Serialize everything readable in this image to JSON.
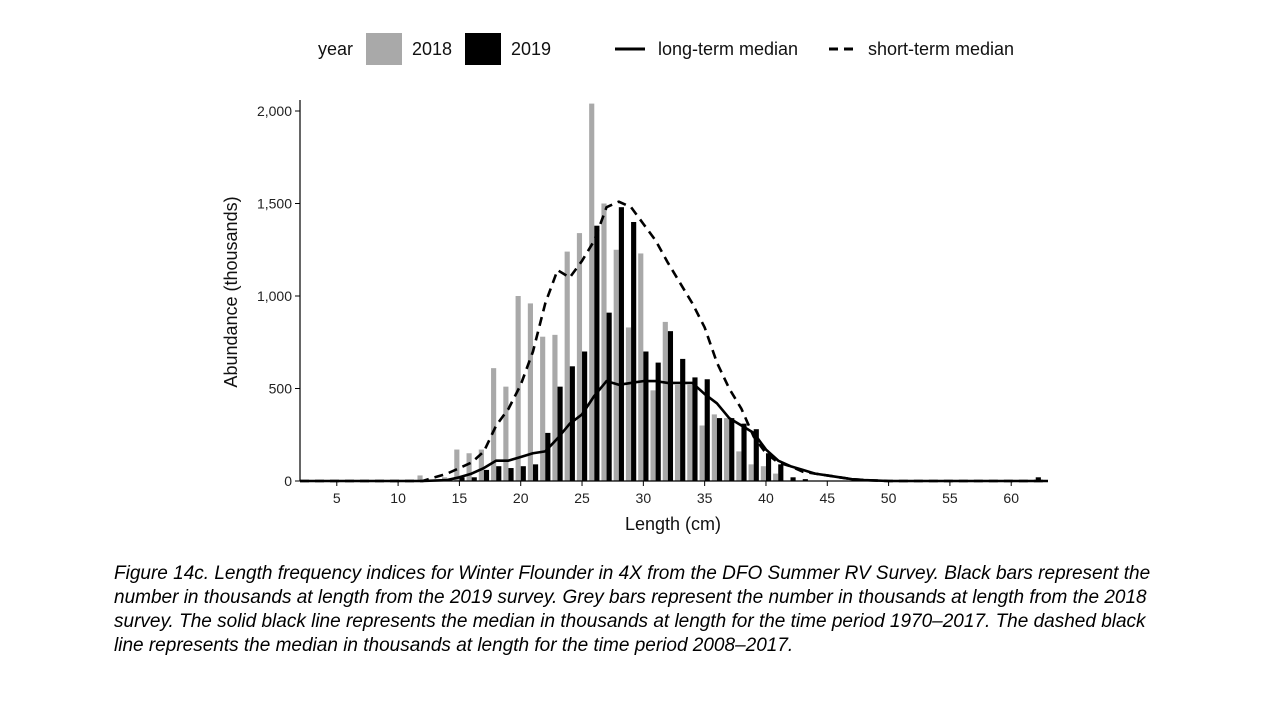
{
  "chart_data": {
    "type": "bar",
    "xlabel": "Length (cm)",
    "ylabel": "Abundance (thousands)",
    "xlim": [
      2,
      63
    ],
    "ylim": [
      0,
      2000
    ],
    "x_ticks": [
      5,
      10,
      15,
      20,
      25,
      30,
      35,
      40,
      45,
      50,
      55,
      60
    ],
    "y_ticks": [
      0,
      500,
      1000,
      1500,
      2000
    ],
    "y_tick_labels": [
      "0",
      "500",
      "1,000",
      "1,500",
      "2,000"
    ],
    "legend": {
      "title": "year",
      "position": "top",
      "items": [
        {
          "label": "2018",
          "kind": "bar",
          "color": "#a9a9a9"
        },
        {
          "label": "2019",
          "kind": "bar",
          "color": "#000000"
        },
        {
          "label": "long-term median",
          "kind": "line",
          "style": "solid",
          "color": "#000000"
        },
        {
          "label": "short-term median",
          "kind": "line",
          "style": "dashed",
          "color": "#000000"
        }
      ]
    },
    "grid": false,
    "lengths": [
      12,
      13,
      14,
      15,
      16,
      17,
      18,
      19,
      20,
      21,
      22,
      23,
      24,
      25,
      26,
      27,
      28,
      29,
      30,
      31,
      32,
      33,
      34,
      35,
      36,
      37,
      38,
      39,
      40,
      41,
      42,
      43,
      44,
      45,
      46,
      47,
      48,
      49,
      50,
      51,
      52,
      53,
      54,
      55,
      56,
      57,
      58,
      59,
      60,
      61,
      62
    ],
    "series": [
      {
        "name": "2018",
        "color": "#a9a9a9",
        "values": [
          30,
          0,
          20,
          170,
          150,
          170,
          610,
          510,
          1000,
          960,
          780,
          790,
          1240,
          1340,
          2040,
          1500,
          1250,
          830,
          1230,
          490,
          860,
          520,
          520,
          300,
          360,
          340,
          160,
          90,
          80,
          40,
          0,
          0,
          0,
          0,
          0,
          0,
          0,
          0,
          0,
          0,
          0,
          0,
          0,
          0,
          0,
          0,
          0,
          0,
          0,
          0,
          0
        ]
      },
      {
        "name": "2019",
        "color": "#000000",
        "values": [
          0,
          0,
          0,
          20,
          20,
          60,
          80,
          70,
          80,
          90,
          260,
          510,
          620,
          700,
          1380,
          910,
          1480,
          1400,
          700,
          640,
          810,
          660,
          560,
          550,
          340,
          340,
          310,
          280,
          150,
          90,
          20,
          10,
          0,
          0,
          0,
          0,
          0,
          0,
          0,
          0,
          0,
          0,
          0,
          0,
          0,
          0,
          0,
          0,
          0,
          0,
          20
        ]
      }
    ],
    "long_term_median": {
      "name": "long-term median",
      "x": [
        2,
        12,
        14,
        15,
        16,
        17,
        18,
        19,
        20,
        21,
        22,
        23,
        24,
        25,
        26,
        27,
        28,
        29,
        30,
        31,
        32,
        33,
        34,
        35,
        36,
        37,
        38,
        39,
        40,
        41,
        42,
        43,
        44,
        45,
        46,
        47,
        48,
        50,
        55,
        63
      ],
      "y": [
        0,
        0,
        5,
        20,
        40,
        70,
        110,
        110,
        130,
        150,
        160,
        230,
        310,
        360,
        460,
        540,
        520,
        530,
        540,
        540,
        530,
        530,
        530,
        470,
        420,
        340,
        300,
        260,
        170,
        110,
        80,
        60,
        40,
        30,
        20,
        10,
        5,
        0,
        0,
        0
      ]
    },
    "short_term_median": {
      "name": "short-term median",
      "x": [
        2,
        12,
        13,
        14,
        15,
        16,
        17,
        18,
        19,
        20,
        21,
        22,
        23,
        24,
        25,
        26,
        27,
        28,
        29,
        30,
        31,
        32,
        33,
        34,
        35,
        36,
        37,
        38,
        39,
        40,
        41,
        42,
        43,
        44,
        45,
        46,
        47,
        48,
        50,
        55,
        63
      ],
      "y": [
        0,
        0,
        20,
        40,
        70,
        100,
        160,
        300,
        390,
        520,
        700,
        960,
        1140,
        1100,
        1190,
        1300,
        1480,
        1510,
        1480,
        1390,
        1300,
        1180,
        1070,
        960,
        830,
        640,
        500,
        390,
        240,
        150,
        100,
        80,
        50,
        40,
        30,
        20,
        10,
        5,
        0,
        0,
        0
      ]
    }
  },
  "caption": "Figure 14c. Length frequency indices for Winter Flounder in 4X from the DFO Summer RV Survey. Black bars represent the number in thousands at length from the 2019 survey. Grey bars represent the number in thousands at length from the 2018 survey. The solid black line represents the median in thousands at length for the time period 1970–2017. The dashed black line represents the median in thousands at length for the time period 2008–2017."
}
